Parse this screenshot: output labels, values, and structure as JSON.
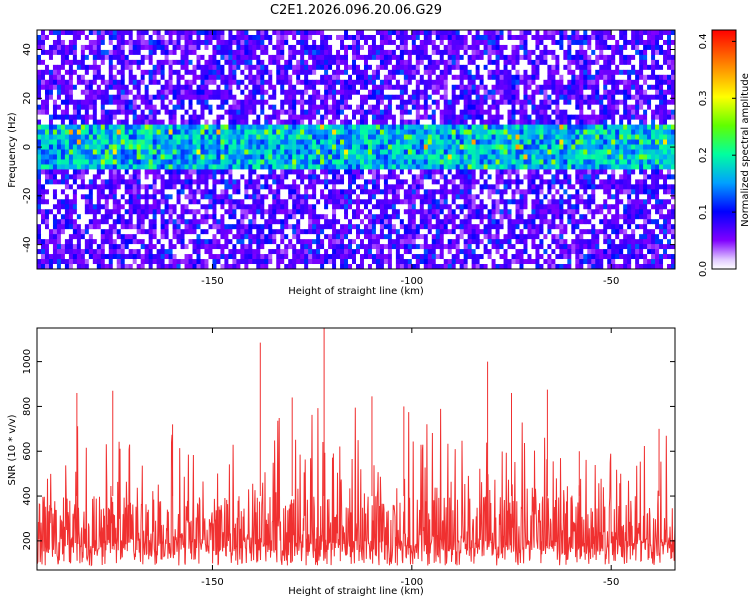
{
  "title": "C2E1.2026.096.20.06.G29",
  "chart_data": [
    {
      "type": "heatmap",
      "xlabel": "Height of straight line (km)",
      "ylabel": "Frequency (Hz)",
      "xlim": [
        -194,
        -34
      ],
      "ylim": [
        -50,
        48
      ],
      "xticks": [
        -150,
        -100,
        -50
      ],
      "yticks": [
        -40,
        -20,
        0,
        20,
        40
      ],
      "colorbar": {
        "label": "Normalized spectral amplitude",
        "range": [
          0.0,
          0.42
        ],
        "ticks": [
          0.0,
          0.1,
          0.2,
          0.3,
          0.4
        ],
        "tick_labels": [
          "0.0",
          "0.1",
          "0.2",
          "0.3",
          "0.4"
        ]
      },
      "description_values": {
        "band_center_hz": 0,
        "band_halfwidth_hz": 9,
        "band_amplitude_typical": 0.12,
        "band_amplitude_peak": 0.33,
        "background_amplitude_typical": 0.03
      },
      "colormap": [
        "#ffffff",
        "#8000ff",
        "#0000ff",
        "#00a0ff",
        "#00ffa0",
        "#80ff00",
        "#ffff00",
        "#ff8000",
        "#ff0000"
      ]
    },
    {
      "type": "line",
      "xlabel": "Height of straight line (km)",
      "ylabel": "SNR (10 * v/v)",
      "xlim": [
        -194,
        -34
      ],
      "ylim": [
        70,
        1150
      ],
      "xticks": [
        -150,
        -100,
        -50
      ],
      "yticks": [
        200,
        400,
        600,
        800,
        1000
      ],
      "series": [
        {
          "name": "SNR",
          "color": "#f03030",
          "baseline_typical": [
            150,
            400
          ],
          "notable_peaks": [
            {
              "x": -184,
              "y": 860
            },
            {
              "x": -175,
              "y": 870
            },
            {
              "x": -160,
              "y": 720
            },
            {
              "x": -138,
              "y": 1085
            },
            {
              "x": -130,
              "y": 840
            },
            {
              "x": -122,
              "y": 1160
            },
            {
              "x": -110,
              "y": 845
            },
            {
              "x": -102,
              "y": 800
            },
            {
              "x": -81,
              "y": 1000
            },
            {
              "x": -75,
              "y": 860
            },
            {
              "x": -66,
              "y": 875
            },
            {
              "x": -58,
              "y": 600
            },
            {
              "x": -38,
              "y": 700
            }
          ]
        }
      ]
    }
  ]
}
